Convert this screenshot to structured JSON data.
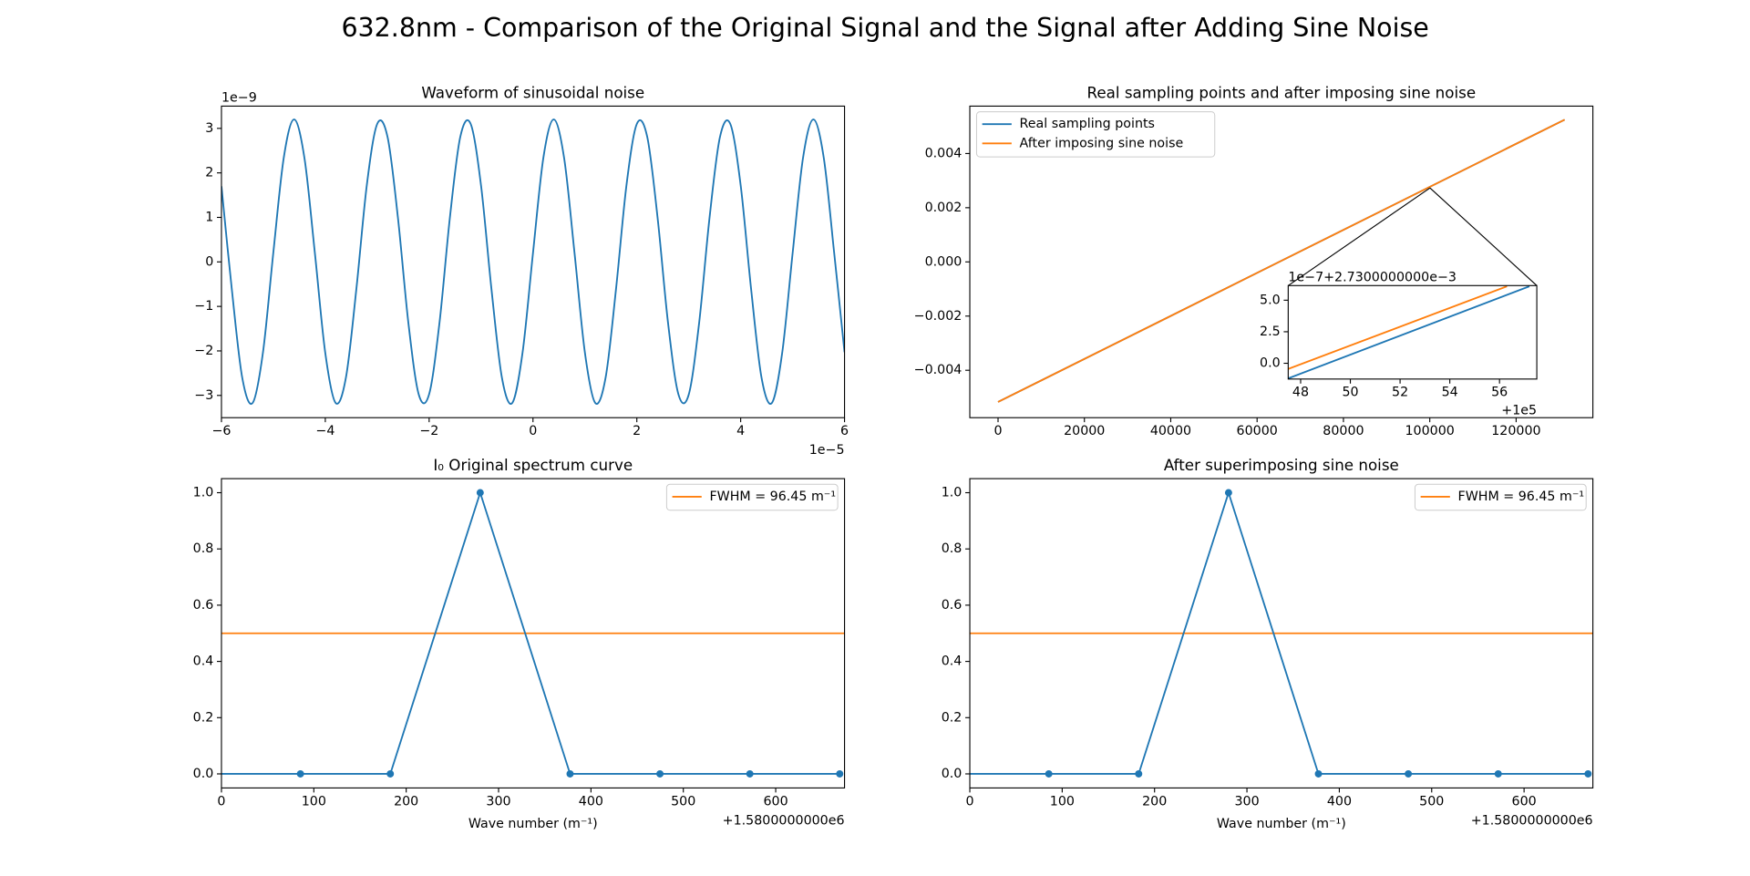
{
  "title": "632.8nm - Comparison of the Original Signal and the Signal after Adding Sine Noise",
  "chart_data": [
    {
      "type": "line",
      "title": "Waveform of sinusoidal noise",
      "x": [
        -6,
        -5.8,
        -5.6,
        -5.4,
        -5.2,
        -5,
        -4.8,
        -4.6,
        -4.4,
        -4.2,
        -4,
        -3.8,
        -3.6,
        -3.4,
        -3.2,
        -3,
        -2.8,
        -2.6,
        -2.4,
        -2.2,
        -2,
        -1.8,
        -1.6,
        -1.4,
        -1.2,
        -1,
        -0.8,
        -0.6,
        -0.4,
        -0.2,
        0,
        0.2,
        0.4,
        0.6,
        0.8,
        1,
        1.2,
        1.4,
        1.6,
        1.8,
        2,
        2.2,
        2.4,
        2.6,
        2.8,
        3,
        3.2,
        3.4,
        3.6,
        3.8,
        4,
        4.2,
        4.4,
        4.6,
        4.8,
        5,
        5.2,
        5.4,
        5.6,
        5.8,
        6
      ],
      "series": [
        {
          "color": "#1f77b4",
          "values": [
            1.7,
            -0.62,
            -2.6,
            -3.17,
            -2.03,
            0.22,
            2.34,
            3.2,
            2.32,
            0.19,
            -2.05,
            -3.17,
            -2.58,
            -0.59,
            1.73,
            3.1,
            2.8,
            0.98,
            -1.37,
            -2.98,
            -2.97,
            -1.36,
            1.0,
            2.81,
            3.1,
            1.71,
            -0.61,
            -2.59,
            -3.17,
            -2.03,
            0.2,
            2.34,
            3.2,
            2.33,
            0.2,
            -2.04,
            -3.17,
            -2.59,
            -0.6,
            1.72,
            3.1,
            2.81,
            0.99,
            -1.36,
            -2.97,
            -2.98,
            -1.37,
            0.99,
            2.8,
            3.1,
            1.72,
            -0.6,
            -2.59,
            -3.17,
            -2.04,
            0.19,
            2.33,
            3.2,
            2.34,
            0.21,
            -2.03
          ]
        }
      ],
      "xlim": [
        -6,
        6
      ],
      "xticks": [
        {
          "value": -6,
          "label": "−6"
        },
        {
          "value": -4,
          "label": "−4"
        },
        {
          "value": -2,
          "label": "−2"
        },
        0,
        2,
        4,
        6
      ],
      "ylim": [
        -3.5,
        3.5
      ],
      "yticks": [
        {
          "value": -3,
          "label": "−3"
        },
        {
          "value": -2,
          "label": "−2"
        },
        {
          "value": -1,
          "label": "−1"
        },
        0,
        1,
        2,
        3
      ],
      "x_offset_label": "1e−5",
      "y_offset_label": "1e−9"
    },
    {
      "type": "line",
      "title": "Real sampling points and after imposing sine noise",
      "series": [
        {
          "name": "Real sampling points",
          "color": "#1f77b4",
          "x": [
            0,
            131240
          ],
          "values": [
            -0.00517,
            0.00525
          ]
        },
        {
          "name": "After imposing sine noise",
          "color": "#ff7f0e",
          "x": [
            0,
            131240
          ],
          "values": [
            -0.00517,
            0.00525
          ]
        }
      ],
      "xlim": [
        -6540,
        137780
      ],
      "xticks": [
        0,
        20000,
        40000,
        60000,
        80000,
        100000,
        120000
      ],
      "ylim": [
        -0.00575,
        0.00575
      ],
      "yticks": [
        {
          "value": -0.004,
          "label": "−0.004"
        },
        {
          "value": -0.002,
          "label": "−0.002"
        },
        {
          "value": 0,
          "label": "0.000"
        },
        {
          "value": 0.002,
          "label": "0.002"
        },
        {
          "value": 0.004,
          "label": "0.004"
        }
      ],
      "legend": "upper left",
      "inset": {
        "type": "line",
        "series": [
          {
            "color": "#1f77b4",
            "x": [
              47.5,
              57.2
            ],
            "values": [
              -1.2,
              6.1
            ]
          },
          {
            "color": "#ff7f0e",
            "x": [
              47.5,
              56.3
            ],
            "values": [
              -0.45,
              6.1
            ]
          }
        ],
        "xlim": [
          47.5,
          57.5
        ],
        "xticks": [
          48,
          50,
          52,
          54,
          56
        ],
        "ylim": [
          -1.25,
          6.16
        ],
        "yticks": [
          {
            "value": 0,
            "label": "0.0"
          },
          2.5,
          {
            "value": 5,
            "label": "5.0"
          }
        ],
        "x_offset": {
          "value": 100000,
          "label": "+1e5"
        },
        "y_offset": {
          "value": 0.00273,
          "scale": 1e-07,
          "label": "1e−7+2.7300000000e−3"
        }
      }
    },
    {
      "type": "line",
      "title": "I₀ Original spectrum curve",
      "xlabel": "Wave number (m⁻¹)",
      "series": [
        {
          "color": "#1f77b4",
          "x": [
            -11.8,
            85.5,
            182.8,
            280.1,
            377.4,
            474.7,
            572.0,
            669.3
          ],
          "values": [
            0,
            0,
            0,
            1,
            0,
            0,
            0,
            0
          ],
          "markers": true
        }
      ],
      "hlines": [
        {
          "name": "FWHM = 96.45 m⁻¹",
          "color": "#ff7f0e",
          "value": 0.5
        }
      ],
      "xlim": [
        0,
        674.5
      ],
      "xticks": [
        0,
        100,
        200,
        300,
        400,
        500,
        600
      ],
      "ylim": [
        -0.05,
        1.05
      ],
      "yticks": [
        {
          "value": 0,
          "label": "0.0"
        },
        {
          "value": 0.2,
          "label": "0.2"
        },
        {
          "value": 0.4,
          "label": "0.4"
        },
        {
          "value": 0.6,
          "label": "0.6"
        },
        {
          "value": 0.8,
          "label": "0.8"
        },
        {
          "value": 1,
          "label": "1.0"
        }
      ],
      "x_offset_label": "+1.5800000000e6",
      "legend": "upper right"
    },
    {
      "type": "line",
      "title": "After superimposing sine noise",
      "xlabel": "Wave number (m⁻¹)",
      "series": [
        {
          "color": "#1f77b4",
          "x": [
            -11.8,
            85.5,
            182.8,
            280.1,
            377.4,
            474.7,
            572.0,
            669.3
          ],
          "values": [
            0,
            0,
            0,
            1,
            0,
            0,
            0,
            0
          ],
          "markers": true
        }
      ],
      "hlines": [
        {
          "name": "FWHM = 96.45 m⁻¹",
          "color": "#ff7f0e",
          "value": 0.5
        }
      ],
      "xlim": [
        0,
        674.5
      ],
      "xticks": [
        0,
        100,
        200,
        300,
        400,
        500,
        600
      ],
      "ylim": [
        -0.05,
        1.05
      ],
      "yticks": [
        {
          "value": 0,
          "label": "0.0"
        },
        {
          "value": 0.2,
          "label": "0.2"
        },
        {
          "value": 0.4,
          "label": "0.4"
        },
        {
          "value": 0.6,
          "label": "0.6"
        },
        {
          "value": 0.8,
          "label": "0.8"
        },
        {
          "value": 1,
          "label": "1.0"
        }
      ],
      "x_offset_label": "+1.5800000000e6",
      "legend": "upper right"
    }
  ]
}
